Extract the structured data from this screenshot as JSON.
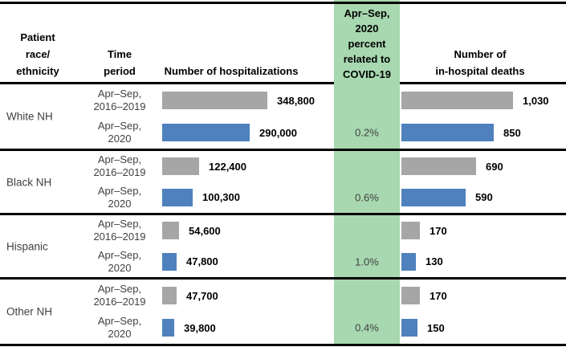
{
  "colors": {
    "bar_2016_2019": "#a6a6a6",
    "bar_2020": "#4f81bd",
    "covid_band": "#a8d8b0",
    "rule": "#000000"
  },
  "headers": {
    "race": "Patient\nrace/\nethnicity",
    "time": "Time\nperiod",
    "hospitalizations": "Number of hospitalizations",
    "covid": "Apr–Sep,\n2020\npercent\nrelated to\nCOVID-19",
    "deaths": "Number of\nin-hospital deaths"
  },
  "rows": [
    {
      "race": "White NH",
      "periods": [
        {
          "time": "Apr–Sep,\n2016–2019",
          "hosp": 348800,
          "hosp_label": "348,800",
          "deaths": 1030,
          "deaths_label": "1,030",
          "covid_pct": ""
        },
        {
          "time": "Apr–Sep,\n2020",
          "hosp": 290000,
          "hosp_label": "290,000",
          "deaths": 850,
          "deaths_label": "850",
          "covid_pct": "0.2%"
        }
      ]
    },
    {
      "race": "Black NH",
      "periods": [
        {
          "time": "Apr–Sep,\n2016–2019",
          "hosp": 122400,
          "hosp_label": "122,400",
          "deaths": 690,
          "deaths_label": "690",
          "covid_pct": ""
        },
        {
          "time": "Apr–Sep,\n2020",
          "hosp": 100300,
          "hosp_label": "100,300",
          "deaths": 590,
          "deaths_label": "590",
          "covid_pct": "0.6%"
        }
      ]
    },
    {
      "race": "Hispanic",
      "periods": [
        {
          "time": "Apr–Sep,\n2016–2019",
          "hosp": 54600,
          "hosp_label": "54,600",
          "deaths": 170,
          "deaths_label": "170",
          "covid_pct": ""
        },
        {
          "time": "Apr–Sep,\n2020",
          "hosp": 47800,
          "hosp_label": "47,800",
          "deaths": 130,
          "deaths_label": "130",
          "covid_pct": "1.0%"
        }
      ]
    },
    {
      "race": "Other NH",
      "periods": [
        {
          "time": "Apr–Sep,\n2016–2019",
          "hosp": 47700,
          "hosp_label": "47,700",
          "deaths": 170,
          "deaths_label": "170",
          "covid_pct": ""
        },
        {
          "time": "Apr–Sep,\n2020",
          "hosp": 39800,
          "hosp_label": "39,800",
          "deaths": 150,
          "deaths_label": "150",
          "covid_pct": "0.4%"
        }
      ]
    }
  ],
  "chart_data": [
    {
      "type": "bar",
      "title": "Number of hospitalizations",
      "orientation": "horizontal",
      "categories": [
        "White NH",
        "Black NH",
        "Hispanic",
        "Other NH"
      ],
      "series": [
        {
          "name": "Apr–Sep, 2016–2019",
          "color": "#a6a6a6",
          "values": [
            348800,
            122400,
            54600,
            47700
          ]
        },
        {
          "name": "Apr–Sep, 2020",
          "color": "#4f81bd",
          "values": [
            290000,
            100300,
            47800,
            39800
          ]
        }
      ],
      "data_labels": [
        [
          "348,800",
          "122,400",
          "54,600",
          "47,700"
        ],
        [
          "290,000",
          "100,300",
          "47,800",
          "39,800"
        ]
      ]
    },
    {
      "type": "bar",
      "title": "Number of in-hospital deaths",
      "orientation": "horizontal",
      "categories": [
        "White NH",
        "Black NH",
        "Hispanic",
        "Other NH"
      ],
      "series": [
        {
          "name": "Apr–Sep, 2016–2019",
          "color": "#a6a6a6",
          "values": [
            1030,
            690,
            170,
            170
          ]
        },
        {
          "name": "Apr–Sep, 2020",
          "color": "#4f81bd",
          "values": [
            850,
            590,
            130,
            150
          ]
        }
      ],
      "data_labels": [
        [
          "1,030",
          "690",
          "170",
          "170"
        ],
        [
          "850",
          "590",
          "130",
          "150"
        ]
      ]
    },
    {
      "type": "table",
      "title": "Apr–Sep, 2020 percent related to COVID-19",
      "categories": [
        "White NH",
        "Black NH",
        "Hispanic",
        "Other NH"
      ],
      "values": [
        "0.2%",
        "0.6%",
        "1.0%",
        "0.4%"
      ]
    }
  ]
}
